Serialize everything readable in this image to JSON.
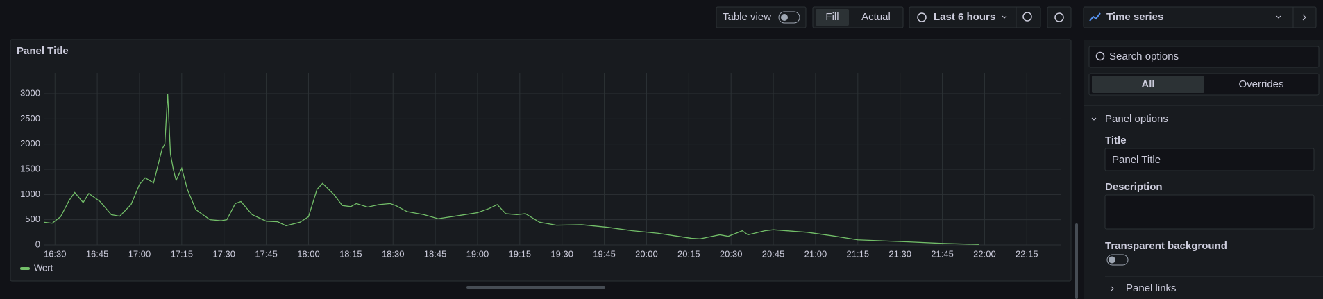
{
  "toolbar": {
    "table_view": "Table view",
    "fill": "Fill",
    "actual": "Actual",
    "time_range": "Last 6 hours",
    "visualization": "Time series"
  },
  "chart_data": {
    "type": "line",
    "title": "Panel Title",
    "x": [
      "16:26",
      "16:29",
      "16:32",
      "16:35",
      "16:37",
      "16:40",
      "16:42",
      "16:46",
      "16:50",
      "16:53",
      "16:57",
      "17:00",
      "17:02",
      "17:05",
      "17:08",
      "17:09",
      "17:10",
      "17:11",
      "17:12",
      "17:13",
      "17:15",
      "17:17",
      "17:20",
      "17:25",
      "17:29",
      "17:31",
      "17:34",
      "17:36",
      "17:40",
      "17:45",
      "17:49",
      "17:52",
      "17:57",
      "18:00",
      "18:03",
      "18:05",
      "18:09",
      "18:12",
      "18:15",
      "18:17",
      "18:21",
      "18:25",
      "18:29",
      "18:31",
      "18:35",
      "18:41",
      "18:46",
      "18:52",
      "19:00",
      "19:04",
      "19:07",
      "19:10",
      "19:14",
      "19:17",
      "19:22",
      "19:28",
      "19:37",
      "19:46",
      "19:55",
      "20:04",
      "20:10",
      "20:16",
      "20:19",
      "20:26",
      "20:29",
      "20:34",
      "20:36",
      "20:42",
      "20:45",
      "20:57",
      "21:06",
      "21:15",
      "21:33",
      "21:45",
      "21:58"
    ],
    "series": [
      {
        "name": "Wert",
        "color": "#73bf69",
        "values": [
          450,
          430,
          560,
          880,
          1040,
          840,
          1020,
          860,
          600,
          570,
          800,
          1200,
          1330,
          1230,
          1900,
          2000,
          3000,
          1800,
          1500,
          1280,
          1520,
          1100,
          700,
          500,
          480,
          500,
          820,
          860,
          600,
          470,
          460,
          380,
          450,
          560,
          1100,
          1220,
          1000,
          780,
          760,
          820,
          750,
          800,
          820,
          780,
          660,
          600,
          520,
          570,
          640,
          720,
          800,
          620,
          600,
          620,
          450,
          390,
          400,
          350,
          280,
          230,
          180,
          130,
          120,
          200,
          170,
          280,
          200,
          280,
          300,
          250,
          180,
          100,
          60,
          30,
          10
        ]
      }
    ],
    "xlim": [
      "16:26",
      "22:27"
    ],
    "xticks": [
      "16:30",
      "16:45",
      "17:00",
      "17:15",
      "17:30",
      "17:45",
      "18:00",
      "18:15",
      "18:30",
      "18:45",
      "19:00",
      "19:15",
      "19:30",
      "19:45",
      "20:00",
      "20:15",
      "20:30",
      "20:45",
      "21:00",
      "21:15",
      "21:30",
      "21:45",
      "22:00",
      "22:15"
    ],
    "ylim": [
      0,
      3000
    ],
    "yticks": [
      0,
      500,
      1000,
      1500,
      2000,
      2500,
      3000
    ],
    "grid": true,
    "legend": "bottom-left"
  },
  "options_pane": {
    "search_placeholder": "Search options",
    "tabs": [
      "All",
      "Overrides"
    ],
    "section": "Panel options",
    "title_label": "Title",
    "title_value": "Panel Title",
    "description_label": "Description",
    "transparent_label": "Transparent background",
    "links_section": "Panel links"
  }
}
